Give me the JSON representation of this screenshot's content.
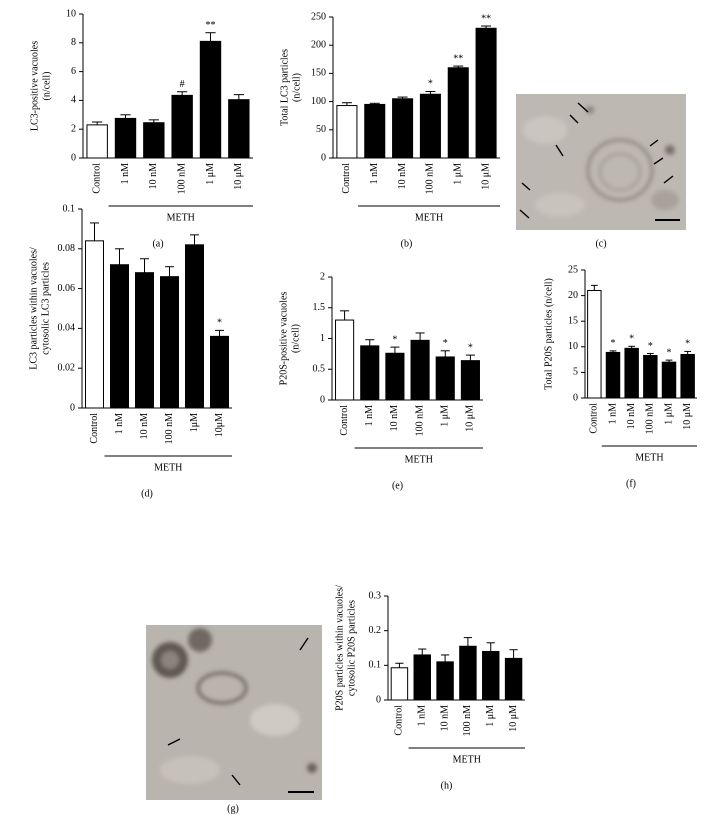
{
  "chart_data": [
    {
      "type": "bar",
      "label": "(a)",
      "ylabel": [
        "LC3-positive vacuoles",
        "(n/cell)"
      ],
      "categories": [
        "Control",
        "1 nM",
        "10 nM",
        "100 nM",
        "1 μM",
        "10 μM"
      ],
      "values": [
        2.3,
        2.75,
        2.45,
        4.35,
        8.1,
        4.05
      ],
      "errors": [
        0.2,
        0.25,
        0.2,
        0.25,
        0.6,
        0.35
      ],
      "significance": [
        null,
        null,
        null,
        "#",
        "**",
        null
      ],
      "colors": [
        "#ffffff",
        "#000000",
        "#000000",
        "#000000",
        "#000000",
        "#000000"
      ],
      "group_label": "METH",
      "ylim": [
        0,
        10
      ],
      "yticks": [
        0,
        2,
        4,
        6,
        8,
        10
      ]
    },
    {
      "type": "bar",
      "label": "(b)",
      "ylabel": [
        "Total LC3 particles",
        "(n/cell)"
      ],
      "categories": [
        "Control",
        "1 nM",
        "10 nM",
        "100 nM",
        "1 μM",
        "10 μM"
      ],
      "values": [
        93,
        95,
        105,
        113,
        160,
        230
      ],
      "errors": [
        5,
        2,
        3,
        5,
        3,
        4
      ],
      "significance": [
        null,
        null,
        null,
        "*",
        "**",
        "**"
      ],
      "colors": [
        "#ffffff",
        "#000000",
        "#000000",
        "#000000",
        "#000000",
        "#000000"
      ],
      "group_label": "METH",
      "ylim": [
        0,
        250
      ],
      "yticks": [
        0,
        50,
        100,
        150,
        200,
        250
      ]
    },
    {
      "type": "bar",
      "label": "(d)",
      "ylabel": [
        "LC3 particles within vacuoles/",
        "cytosolic LC3 particles"
      ],
      "categories": [
        "Control",
        "1 nM",
        "10 nM",
        "100 nM",
        "1μM",
        "10μM"
      ],
      "values": [
        0.084,
        0.072,
        0.068,
        0.066,
        0.082,
        0.036
      ],
      "errors": [
        0.009,
        0.008,
        0.007,
        0.005,
        0.005,
        0.003
      ],
      "significance": [
        null,
        null,
        null,
        null,
        null,
        "*"
      ],
      "colors": [
        "#ffffff",
        "#000000",
        "#000000",
        "#000000",
        "#000000",
        "#000000"
      ],
      "group_label": "METH",
      "ylim": [
        0,
        0.1
      ],
      "yticks": [
        0,
        0.02,
        0.04,
        0.06,
        0.08,
        0.1
      ]
    },
    {
      "type": "bar",
      "label": "(e)",
      "ylabel": [
        "P20S-positive vacuoles",
        "(n/cell)"
      ],
      "categories": [
        "Control",
        "1 nM",
        "10 nM",
        "100 nM",
        "1 μM",
        "10 μM"
      ],
      "values": [
        1.3,
        0.88,
        0.76,
        0.97,
        0.7,
        0.64
      ],
      "errors": [
        0.15,
        0.1,
        0.1,
        0.12,
        0.1,
        0.09
      ],
      "significance": [
        null,
        null,
        "*",
        null,
        "*",
        "*"
      ],
      "colors": [
        "#ffffff",
        "#000000",
        "#000000",
        "#000000",
        "#000000",
        "#000000"
      ],
      "group_label": "METH",
      "ylim": [
        0,
        2
      ],
      "yticks": [
        0,
        0.5,
        1,
        1.5,
        2
      ]
    },
    {
      "type": "bar",
      "label": "(f)",
      "ylabel": [
        "Total P20S particles (n/cell)"
      ],
      "categories": [
        "Control",
        "1 nM",
        "10 nM",
        "100 nM",
        "1 μM",
        "10 μM"
      ],
      "values": [
        21,
        8.9,
        9.7,
        8.3,
        7.0,
        8.5
      ],
      "errors": [
        1,
        0.3,
        0.4,
        0.4,
        0.4,
        0.6
      ],
      "significance": [
        null,
        "*",
        "*",
        "*",
        "*",
        "*"
      ],
      "colors": [
        "#ffffff",
        "#000000",
        "#000000",
        "#000000",
        "#000000",
        "#000000"
      ],
      "group_label": "METH",
      "ylim": [
        0,
        25
      ],
      "yticks": [
        0,
        5,
        10,
        15,
        20,
        25
      ]
    },
    {
      "type": "bar",
      "label": "(h)",
      "ylabel": [
        "P20S particles within vacuoles/",
        "cytosolic P20S particles"
      ],
      "categories": [
        "Control",
        "1 nM",
        "10 nM",
        "100 nM",
        "1 μM",
        "10 μM"
      ],
      "values": [
        0.093,
        0.13,
        0.11,
        0.155,
        0.14,
        0.12
      ],
      "errors": [
        0.013,
        0.017,
        0.02,
        0.025,
        0.025,
        0.025
      ],
      "significance": [
        null,
        null,
        null,
        null,
        null,
        null
      ],
      "colors": [
        "#ffffff",
        "#000000",
        "#000000",
        "#000000",
        "#000000",
        "#000000"
      ],
      "group_label": "METH",
      "ylim": [
        0,
        0.3
      ],
      "yticks": [
        0,
        0.1,
        0.2,
        0.3
      ]
    }
  ],
  "images": [
    {
      "label": "(c)"
    },
    {
      "label": "(g)"
    }
  ]
}
